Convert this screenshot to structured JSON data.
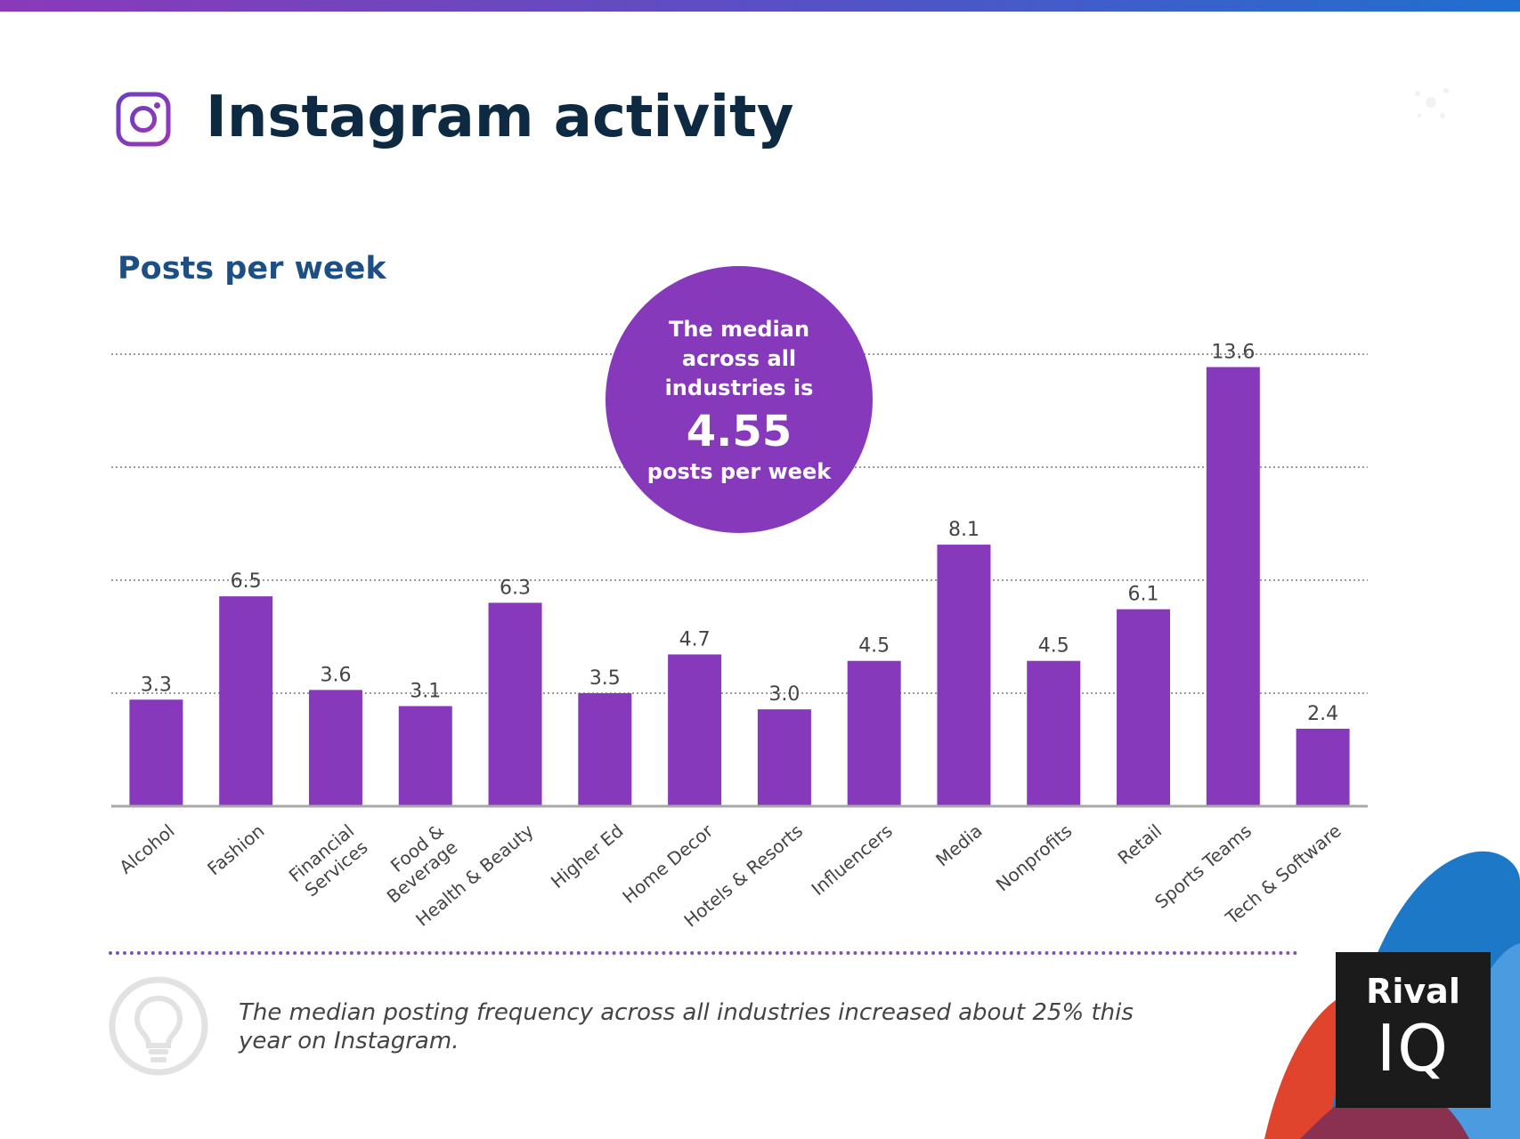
{
  "header": {
    "title": "Instagram activity",
    "icon": "instagram-icon"
  },
  "chart_data": {
    "type": "bar",
    "title": "Posts per week",
    "categories": [
      "Alcohol",
      "Fashion",
      "Financial Services",
      "Food & Beverage",
      "Health & Beauty",
      "Higher Ed",
      "Home Decor",
      "Hotels & Resorts",
      "Influencers",
      "Media",
      "Nonprofits",
      "Retail",
      "Sports Teams",
      "Tech & Software"
    ],
    "category_lines": [
      [
        "Alcohol"
      ],
      [
        "Fashion"
      ],
      [
        "Financial",
        "Services"
      ],
      [
        "Food &",
        "Beverage"
      ],
      [
        "Health & Beauty"
      ],
      [
        "Higher Ed"
      ],
      [
        "Home Decor"
      ],
      [
        "Hotels & Resorts"
      ],
      [
        "Influencers"
      ],
      [
        "Media"
      ],
      [
        "Nonprofits"
      ],
      [
        "Retail"
      ],
      [
        "Sports Teams"
      ],
      [
        "Tech & Software"
      ]
    ],
    "values": [
      3.3,
      6.5,
      3.6,
      3.1,
      6.3,
      3.5,
      4.7,
      3.0,
      4.5,
      8.1,
      4.5,
      6.1,
      13.6,
      2.4
    ],
    "value_labels": [
      "3.3",
      "6.5",
      "3.6",
      "3.1",
      "6.3",
      "3.5",
      "4.7",
      "3.0",
      "4.5",
      "8.1",
      "4.5",
      "6.1",
      "13.6",
      "2.4"
    ],
    "ylim": [
      0,
      14
    ],
    "gridlines": [
      3.5,
      7,
      10.5,
      14
    ],
    "grid": true,
    "grid_style": "dotted",
    "bar_color": "#8739bb",
    "legend": "none"
  },
  "callout": {
    "text": "The median across all industries is",
    "value": "4.55",
    "unit": "posts per week",
    "color": "#8739bb"
  },
  "tip": {
    "icon": "lightbulb-icon",
    "text": "The median posting frequency across all industries increased about 25% this year on Instagram."
  },
  "logo": {
    "line1": "Rival",
    "line2": "IQ"
  },
  "colors": {
    "title": "#0d2a42",
    "subtitle": "#1c4f86",
    "accent": "#8739bb"
  }
}
